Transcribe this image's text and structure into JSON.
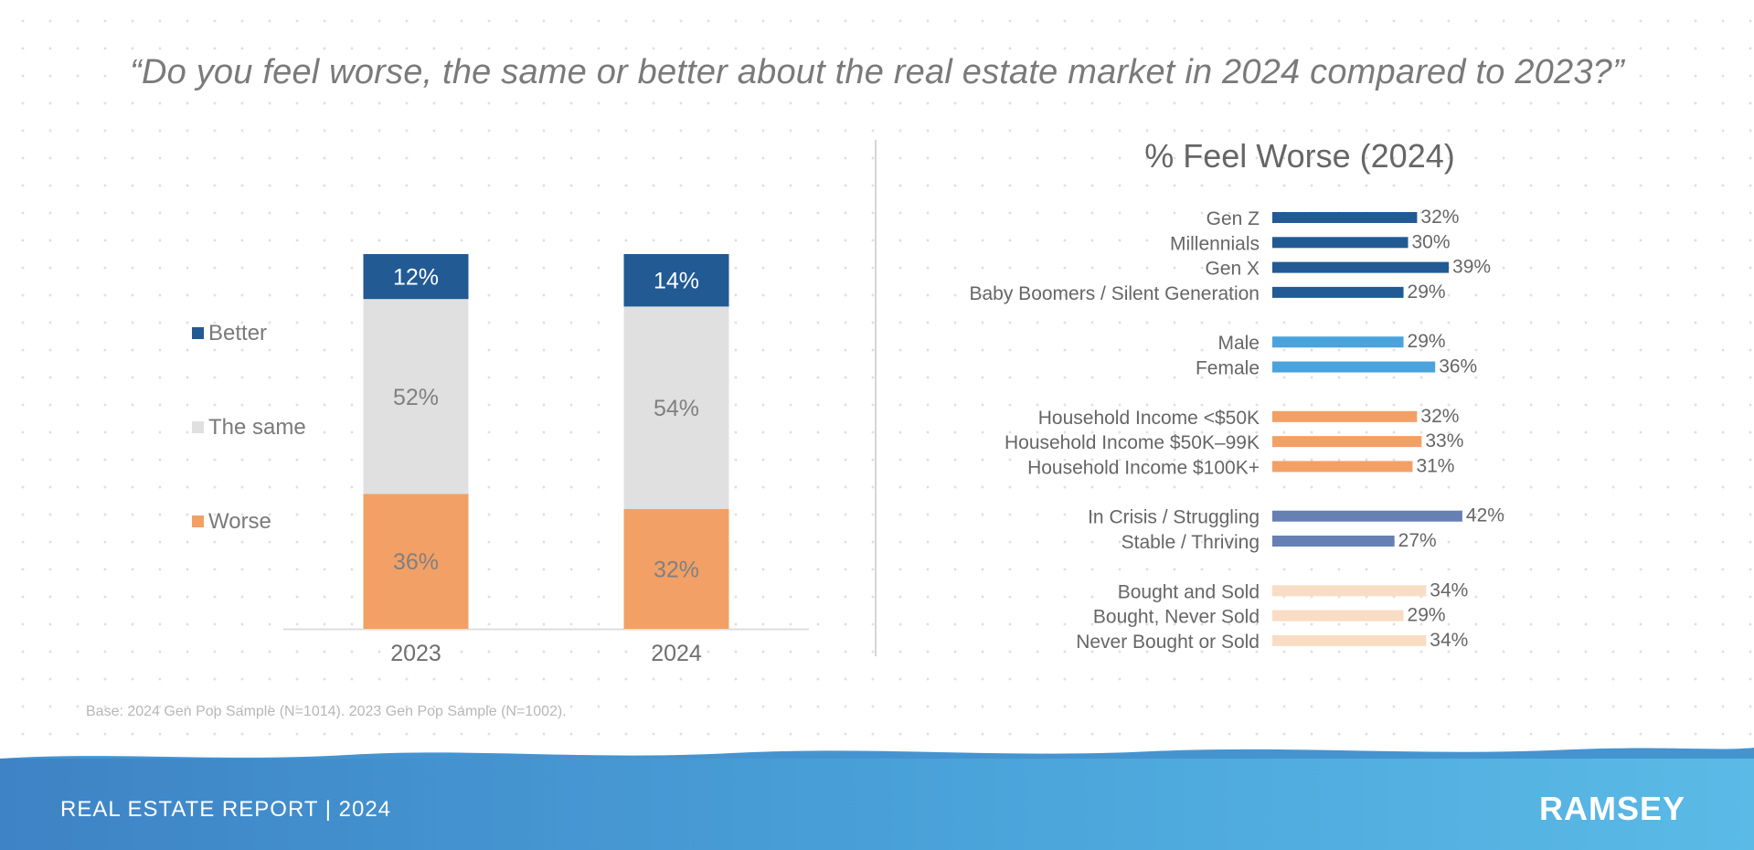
{
  "title": "“Do you feel worse, the same or better about the real estate market in 2024 compared to 2023?”",
  "colors": {
    "better": "#225a94",
    "same": "#e0e0e0",
    "worse": "#f2a066",
    "gen": "#225a94",
    "gender": "#4aa3dd",
    "income": "#f2a066",
    "situation": "#6680b3",
    "homeowner": "#f9dcc4"
  },
  "chart_data": [
    {
      "type": "bar",
      "stacked": true,
      "categories": [
        "2023",
        "2024"
      ],
      "series": [
        {
          "name": "Worse",
          "values": [
            36,
            32
          ],
          "labels": [
            "36%",
            "32%"
          ],
          "color_key": "worse"
        },
        {
          "name": "The same",
          "values": [
            52,
            54
          ],
          "labels": [
            "52%",
            "54%"
          ],
          "color_key": "same"
        },
        {
          "name": "Better",
          "values": [
            12,
            14
          ],
          "labels": [
            "12%",
            "14%"
          ],
          "color_key": "better"
        }
      ],
      "legend": [
        "Better",
        "The same",
        "Worse"
      ],
      "ylim": [
        0,
        100
      ],
      "grid": false
    },
    {
      "type": "bar",
      "orientation": "horizontal",
      "title": "% Feel Worse (2024)",
      "groups": [
        {
          "key": "gen",
          "items": [
            {
              "label": "Gen Z",
              "value": 32,
              "text": "32%"
            },
            {
              "label": "Millennials",
              "value": 30,
              "text": "30%"
            },
            {
              "label": "Gen X",
              "value": 39,
              "text": "39%"
            },
            {
              "label": "Baby Boomers / Silent Generation",
              "value": 29,
              "text": "29%"
            }
          ]
        },
        {
          "key": "gender",
          "items": [
            {
              "label": "Male",
              "value": 29,
              "text": "29%"
            },
            {
              "label": "Female",
              "value": 36,
              "text": "36%"
            }
          ]
        },
        {
          "key": "income",
          "items": [
            {
              "label": "Household Income <$50K",
              "value": 32,
              "text": "32%"
            },
            {
              "label": "Household Income $50K–99K",
              "value": 33,
              "text": "33%"
            },
            {
              "label": "Household Income $100K+",
              "value": 31,
              "text": "31%"
            }
          ]
        },
        {
          "key": "situation",
          "items": [
            {
              "label": "In Crisis / Struggling",
              "value": 42,
              "text": "42%"
            },
            {
              "label": "Stable / Thriving",
              "value": 27,
              "text": "27%"
            }
          ]
        },
        {
          "key": "homeowner",
          "items": [
            {
              "label": "Bought and Sold",
              "value": 34,
              "text": "34%"
            },
            {
              "label": "Bought, Never Sold",
              "value": 29,
              "text": "29%"
            },
            {
              "label": "Never Bought or Sold",
              "value": 34,
              "text": "34%"
            }
          ]
        }
      ]
    }
  ],
  "footnote": "Base: 2024 Gen Pop Sample (N=1014). 2023 Gen Pop Sample (N=1002).",
  "footer": {
    "report": "REAL ESTATE REPORT | 2024",
    "logo": "RAMSEY"
  }
}
